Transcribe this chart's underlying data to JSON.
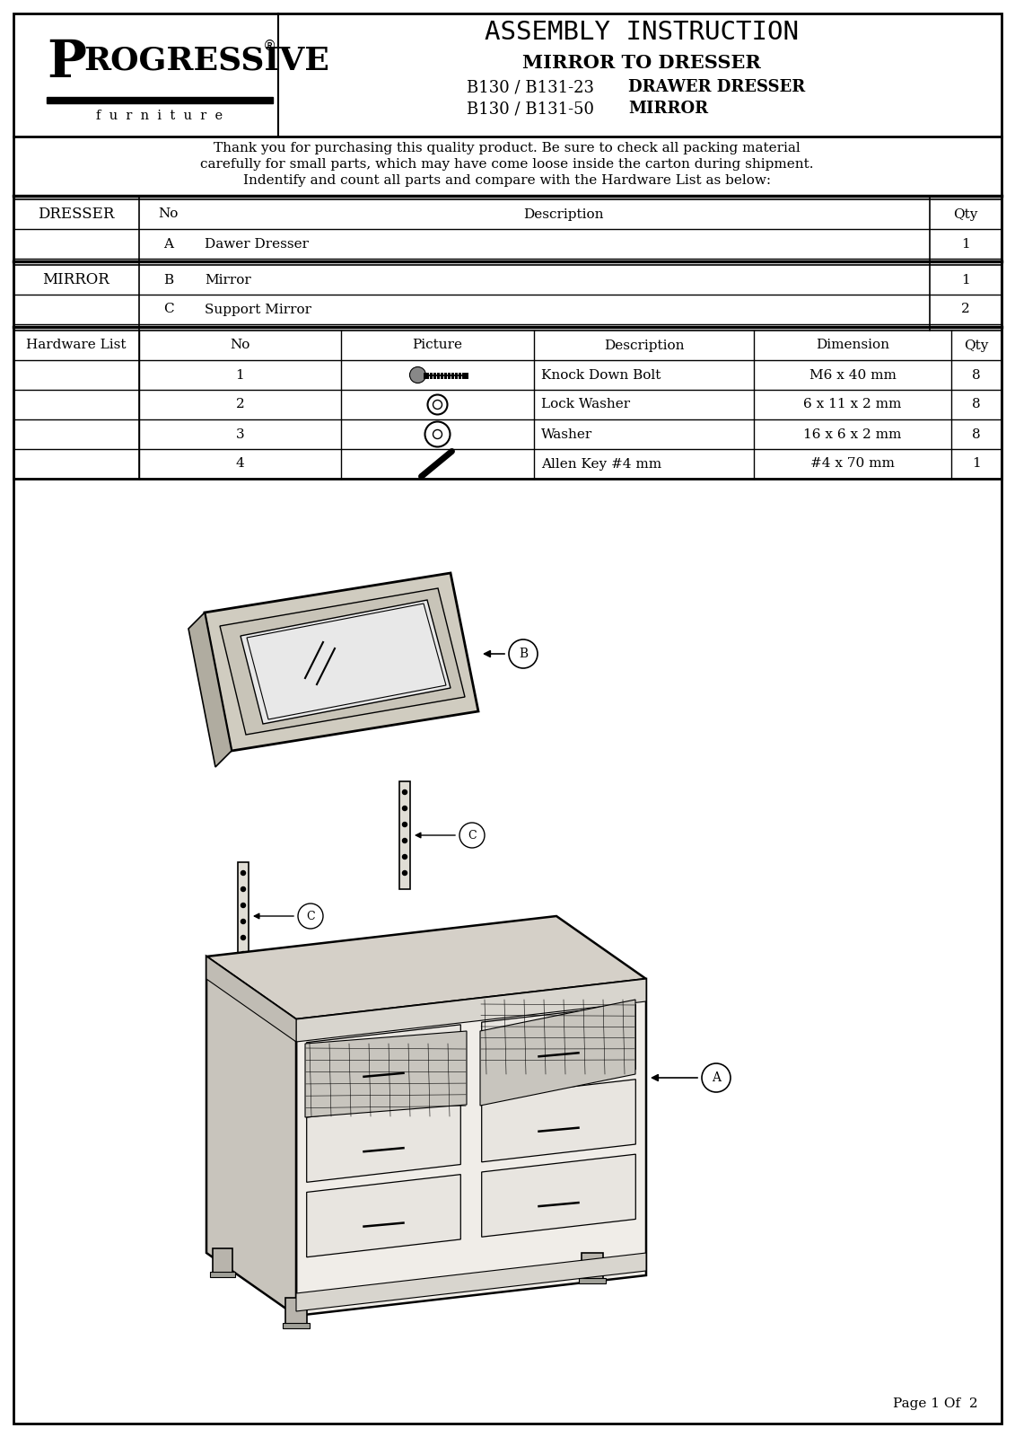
{
  "title_main": "ASSEMBLY INSTRUCTION",
  "title_sub1": "MIRROR TO DRESSER",
  "title_sub2_normal": "B130 / B131-23",
  "title_sub2_bold": "DRAWER DRESSER",
  "title_sub3_normal": "B130 / B131-50",
  "title_sub3_bold": "MIRROR",
  "brand_big": "P",
  "brand_rest": "ROGRESSIVE",
  "brand_reg": "®",
  "brand_sub": "f  u  r  n  i  t  u  r  e",
  "intro_line1": "Thank you for purchasing this quality product. Be sure to check all packing material",
  "intro_line2": "carefully for small parts, which may have come loose inside the carton during shipment.",
  "intro_line3": "Indentify and count all parts and compare with the Hardware List as below:",
  "page_text": "Page 1 Of  2",
  "bg_color": "#ffffff"
}
